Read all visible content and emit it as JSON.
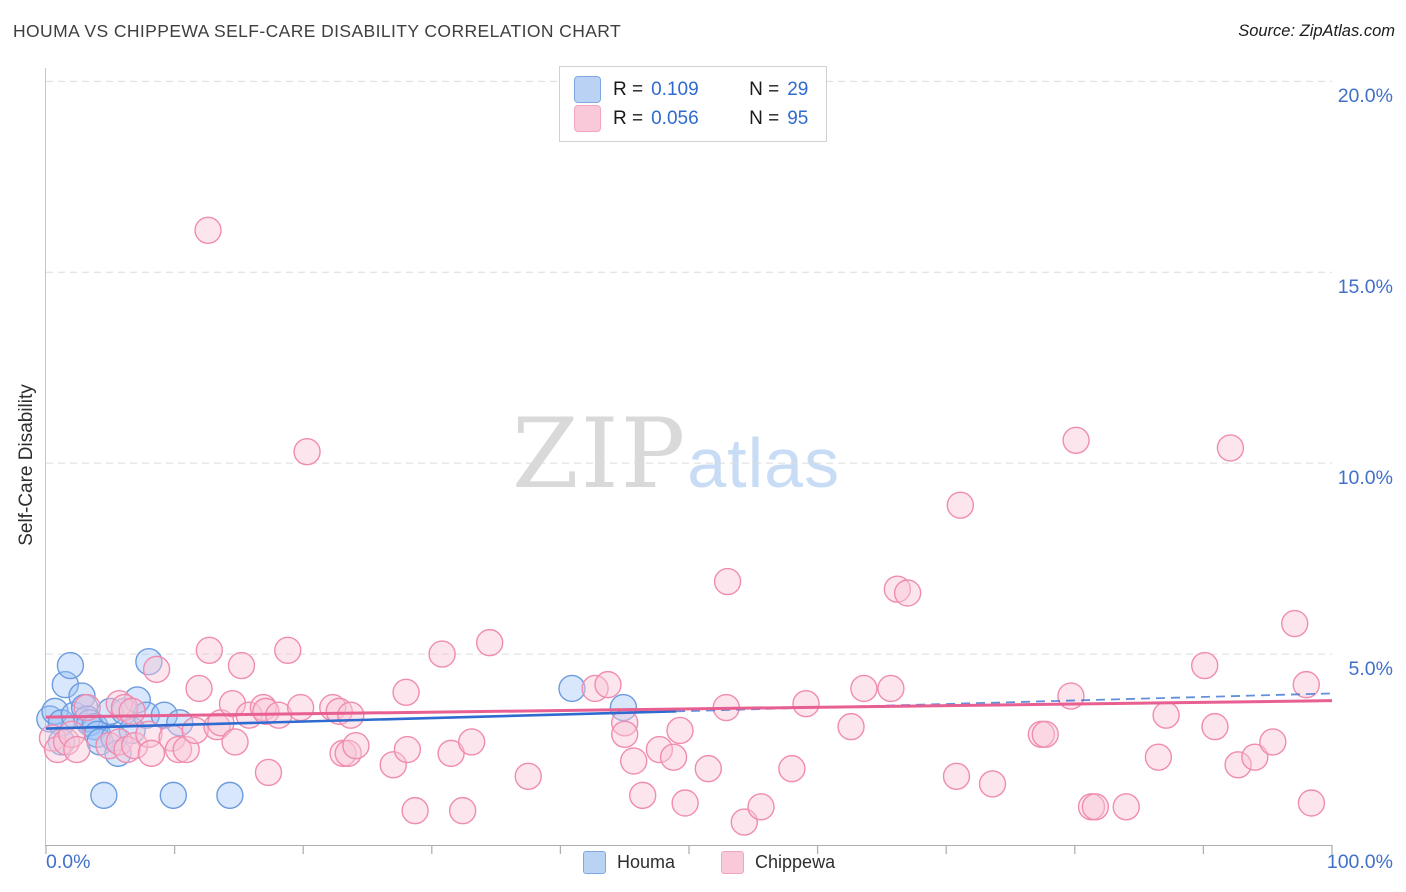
{
  "header": {
    "title": "HOUMA VS CHIPPEWA SELF-CARE DISABILITY CORRELATION CHART",
    "source": "Source: ZipAtlas.com"
  },
  "watermark": {
    "zip": "ZIP",
    "atlas": "atlas"
  },
  "stats_legend": [
    {
      "series": "Houma",
      "r_label": "R =",
      "r_value": "0.109",
      "n_label": "N =",
      "n_value": "29"
    },
    {
      "series": "Chippewa",
      "r_label": "R =",
      "r_value": "0.056",
      "n_label": "N =",
      "n_value": "95"
    }
  ],
  "bottom_legend": [
    {
      "label": "Houma"
    },
    {
      "label": "Chippewa"
    }
  ],
  "colors": {
    "houma_fill": "rgba(158,196,247,0.40)",
    "houma_stroke": "#6c9bde",
    "houma_trend": "#2f6bcf",
    "chippewa_fill": "rgba(249,198,216,0.45)",
    "chippewa_stroke": "#f08cb0",
    "chippewa_trend": "#e85f92",
    "gridline": "#dcdcdc",
    "tick": "#b0b0b0",
    "axis_label_blue": "#4070c8"
  },
  "chart_data": {
    "type": "scatter",
    "title": "HOUMA VS CHIPPEWA SELF-CARE DISABILITY CORRELATION CHART",
    "ylabel": "Self-Care Disability",
    "xlim": [
      0,
      100
    ],
    "ylim": [
      0,
      20.35
    ],
    "x_axis_min_label": "0.0%",
    "x_axis_max_label": "100.0%",
    "x_tick_step_percent": 10,
    "grid": "dashed-horizontal",
    "legend_position": "bottom",
    "y_gridlines": [
      {
        "value": 5,
        "label": "5.0%"
      },
      {
        "value": 10,
        "label": "10.0%"
      },
      {
        "value": 15,
        "label": "15.0%"
      },
      {
        "value": 20,
        "label": "20.0%"
      }
    ],
    "series": [
      {
        "name": "Houma",
        "R": 0.109,
        "N": 29,
        "trend": {
          "start": [
            0,
            3.05
          ],
          "solid_end": [
            49,
            3.5
          ],
          "end": [
            100,
            3.97
          ],
          "dashed_extension": true
        },
        "points": [
          [
            0.3,
            3.3
          ],
          [
            0.7,
            3.5
          ],
          [
            1.2,
            3.2
          ],
          [
            1.2,
            2.7
          ],
          [
            1.5,
            4.2
          ],
          [
            1.9,
            4.7
          ],
          [
            2.2,
            3.4
          ],
          [
            2.8,
            3.9
          ],
          [
            3.0,
            3.6
          ],
          [
            3.2,
            3.3
          ],
          [
            3.4,
            3.2
          ],
          [
            3.8,
            3.1
          ],
          [
            4.0,
            2.9
          ],
          [
            4.2,
            2.7
          ],
          [
            4.5,
            1.3
          ],
          [
            5.0,
            3.5
          ],
          [
            5.3,
            2.8
          ],
          [
            5.6,
            2.4
          ],
          [
            6.1,
            3.5
          ],
          [
            6.7,
            3.0
          ],
          [
            7.1,
            3.8
          ],
          [
            7.8,
            3.4
          ],
          [
            8.0,
            4.8
          ],
          [
            9.2,
            3.4
          ],
          [
            9.9,
            1.3
          ],
          [
            10.4,
            3.2
          ],
          [
            14.3,
            1.3
          ],
          [
            40.9,
            4.1
          ],
          [
            44.9,
            3.6
          ]
        ]
      },
      {
        "name": "Chippewa",
        "R": 0.056,
        "N": 95,
        "trend": {
          "start": [
            0,
            3.35
          ],
          "end": [
            100,
            3.78
          ],
          "dashed_extension": false
        },
        "points": [
          [
            0.5,
            2.8
          ],
          [
            0.9,
            2.5
          ],
          [
            1.6,
            2.7
          ],
          [
            2.0,
            2.9
          ],
          [
            2.4,
            2.5
          ],
          [
            3.2,
            3.6
          ],
          [
            4.9,
            2.6
          ],
          [
            5.7,
            3.7
          ],
          [
            5.7,
            2.7
          ],
          [
            6.1,
            3.6
          ],
          [
            6.3,
            2.5
          ],
          [
            6.7,
            3.5
          ],
          [
            6.9,
            2.6
          ],
          [
            8.0,
            2.9
          ],
          [
            8.2,
            2.4
          ],
          [
            8.6,
            4.6
          ],
          [
            9.8,
            2.8
          ],
          [
            10.3,
            2.5
          ],
          [
            10.9,
            2.5
          ],
          [
            11.6,
            3.0
          ],
          [
            11.9,
            4.1
          ],
          [
            12.6,
            16.1
          ],
          [
            12.7,
            5.1
          ],
          [
            13.3,
            3.1
          ],
          [
            13.6,
            3.2
          ],
          [
            14.5,
            3.7
          ],
          [
            14.7,
            2.7
          ],
          [
            15.2,
            4.7
          ],
          [
            15.8,
            3.4
          ],
          [
            16.9,
            3.6
          ],
          [
            17.1,
            3.5
          ],
          [
            17.3,
            1.9
          ],
          [
            18.1,
            3.4
          ],
          [
            18.8,
            5.1
          ],
          [
            19.8,
            3.6
          ],
          [
            20.3,
            10.3
          ],
          [
            22.3,
            3.6
          ],
          [
            22.8,
            3.5
          ],
          [
            23.1,
            2.4
          ],
          [
            23.5,
            2.4
          ],
          [
            23.7,
            3.4
          ],
          [
            24.1,
            2.6
          ],
          [
            27.0,
            2.1
          ],
          [
            28.0,
            4.0
          ],
          [
            28.1,
            2.5
          ],
          [
            28.7,
            0.9
          ],
          [
            30.8,
            5.0
          ],
          [
            31.5,
            2.4
          ],
          [
            32.4,
            0.9
          ],
          [
            33.1,
            2.7
          ],
          [
            34.5,
            5.3
          ],
          [
            37.5,
            1.8
          ],
          [
            42.7,
            4.1
          ],
          [
            43.7,
            4.2
          ],
          [
            45.0,
            3.2
          ],
          [
            45.0,
            2.9
          ],
          [
            45.7,
            2.2
          ],
          [
            46.4,
            1.3
          ],
          [
            47.7,
            2.5
          ],
          [
            48.8,
            2.3
          ],
          [
            49.3,
            3.0
          ],
          [
            49.7,
            1.1
          ],
          [
            51.5,
            2.0
          ],
          [
            52.9,
            3.6
          ],
          [
            53.0,
            6.9
          ],
          [
            54.3,
            0.6
          ],
          [
            55.6,
            1.0
          ],
          [
            58.0,
            2.0
          ],
          [
            59.1,
            3.7
          ],
          [
            62.6,
            3.1
          ],
          [
            63.6,
            4.1
          ],
          [
            65.7,
            4.1
          ],
          [
            66.2,
            6.7
          ],
          [
            67.0,
            6.6
          ],
          [
            70.8,
            1.8
          ],
          [
            71.1,
            8.9
          ],
          [
            73.6,
            1.6
          ],
          [
            77.4,
            2.9
          ],
          [
            77.7,
            2.9
          ],
          [
            79.7,
            3.9
          ],
          [
            80.1,
            10.6
          ],
          [
            81.3,
            1.0
          ],
          [
            81.6,
            1.0
          ],
          [
            84.0,
            1.0
          ],
          [
            86.5,
            2.3
          ],
          [
            87.1,
            3.4
          ],
          [
            90.1,
            4.7
          ],
          [
            90.9,
            3.1
          ],
          [
            92.1,
            10.4
          ],
          [
            92.7,
            2.1
          ],
          [
            94.0,
            2.3
          ],
          [
            95.4,
            2.7
          ],
          [
            97.1,
            5.8
          ],
          [
            98.0,
            4.2
          ],
          [
            98.4,
            1.1
          ]
        ]
      }
    ]
  }
}
